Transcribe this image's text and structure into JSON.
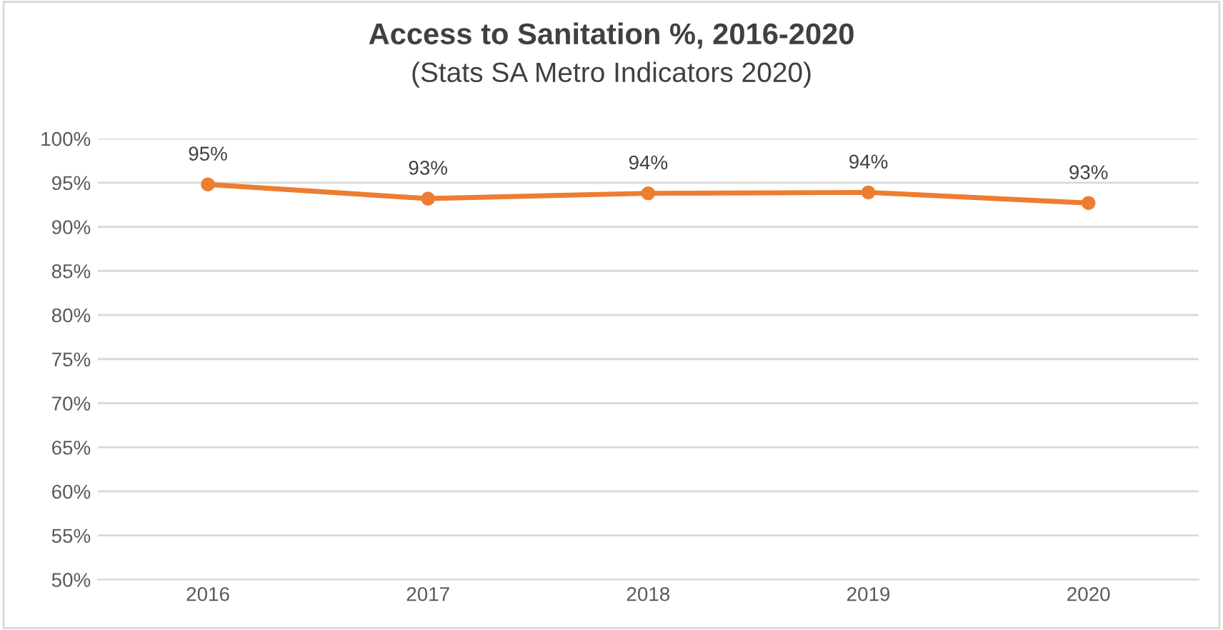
{
  "chart_data": {
    "type": "line",
    "title": "Access to Sanitation %, 2016-2020",
    "subtitle": "(Stats SA Metro Indicators 2020)",
    "categories": [
      "2016",
      "2017",
      "2018",
      "2019",
      "2020"
    ],
    "series": [
      {
        "color": "#ed7d31",
        "values": [
          94.8,
          93.2,
          93.8,
          93.9,
          92.7
        ],
        "value_labels": [
          "95%",
          "93%",
          "94%",
          "94%",
          "93%"
        ]
      }
    ],
    "ylim": [
      50,
      100
    ],
    "yticks": [
      {
        "value": 50,
        "label": "50%"
      },
      {
        "value": 55,
        "label": "55%"
      },
      {
        "value": 60,
        "label": "60%"
      },
      {
        "value": 65,
        "label": "65%"
      },
      {
        "value": 70,
        "label": "70%"
      },
      {
        "value": 75,
        "label": "75%"
      },
      {
        "value": 80,
        "label": "80%"
      },
      {
        "value": 85,
        "label": "85%"
      },
      {
        "value": 90,
        "label": "90%"
      },
      {
        "value": 95,
        "label": "95%"
      },
      {
        "value": 100,
        "label": "100%"
      }
    ],
    "grid": "y",
    "marker": "circle",
    "line_style": "solid"
  }
}
